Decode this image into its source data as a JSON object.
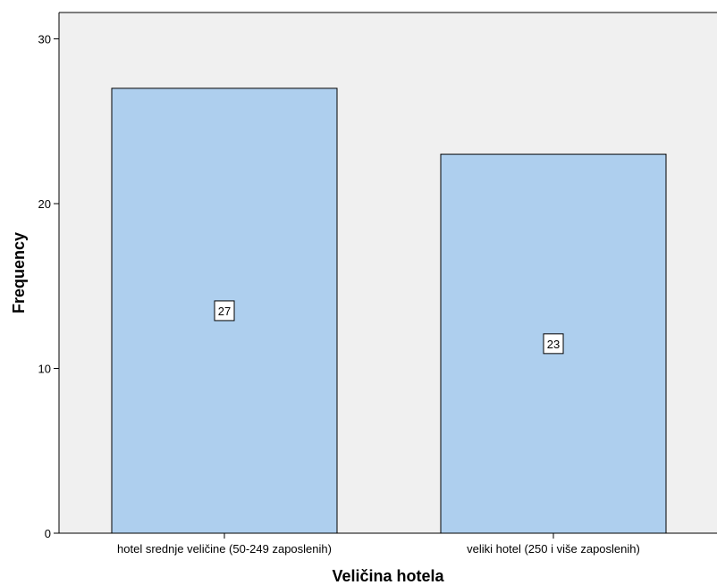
{
  "chart_data": {
    "type": "bar",
    "categories": [
      "hotel srednje veličine (50-249 zaposlenih)",
      "veliki hotel (250 i više zaposlenih)"
    ],
    "values": [
      27,
      23
    ],
    "data_labels": [
      "27",
      "23"
    ],
    "xlabel": "Veličina hotela",
    "ylabel": "Frequency",
    "ylim": [
      0,
      31.6
    ],
    "yticks": [
      0,
      10,
      20,
      30
    ],
    "ytick_labels": [
      "0",
      "10",
      "20",
      "30"
    ],
    "grid": false,
    "colors": {
      "plot_background": "#f0f0f0",
      "bar_fill": "#aecfee",
      "bar_stroke": "#000000"
    }
  }
}
